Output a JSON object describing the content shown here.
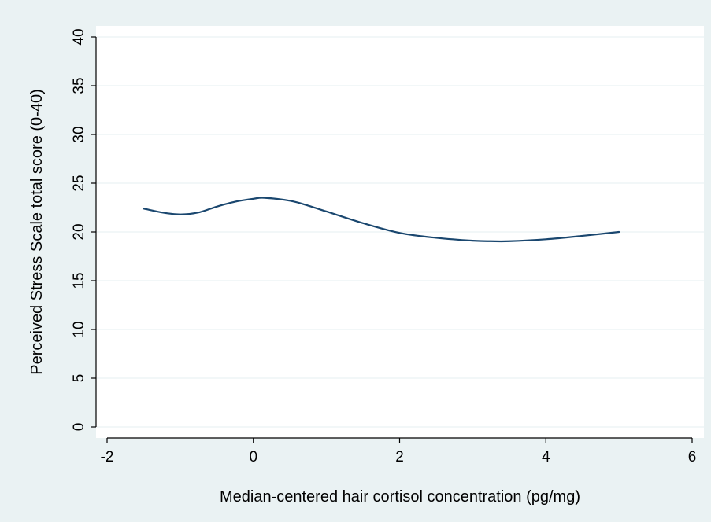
{
  "colors": {
    "outer_background": "#eaf2f3",
    "plot_background": "#ffffff",
    "gridline": "#eaf2f3",
    "axis": "#000000",
    "series_line": "#1a476f"
  },
  "chart_data": {
    "type": "line",
    "title": "",
    "xlabel": "Median-centered hair cortisol concentration (pg/mg)",
    "ylabel": "Perceived Stress Scale total score (0-40)",
    "xlim": [
      -2,
      6
    ],
    "ylim": [
      0,
      40
    ],
    "xticks": [
      -2,
      0,
      2,
      4,
      6
    ],
    "yticks": [
      0,
      5,
      10,
      15,
      20,
      25,
      30,
      35,
      40
    ],
    "xtick_labels": [
      "-2",
      "0",
      "2",
      "4",
      "6"
    ],
    "ytick_labels": [
      "0",
      "5",
      "10",
      "15",
      "20",
      "25",
      "30",
      "35",
      "40"
    ],
    "grid": "horizontal",
    "legend": "none",
    "series": [
      {
        "x": [
          -1.5,
          -1.25,
          -1.0,
          -0.75,
          -0.5,
          -0.25,
          0.0,
          0.15,
          0.5,
          0.75,
          1.0,
          1.5,
          2.0,
          2.5,
          3.0,
          3.25,
          3.5,
          4.0,
          4.5,
          5.0
        ],
        "y": [
          22.4,
          22.0,
          21.8,
          22.0,
          22.6,
          23.1,
          23.4,
          23.5,
          23.2,
          22.7,
          22.1,
          20.9,
          19.9,
          19.4,
          19.1,
          19.05,
          19.05,
          19.25,
          19.6,
          20.0
        ]
      }
    ]
  }
}
